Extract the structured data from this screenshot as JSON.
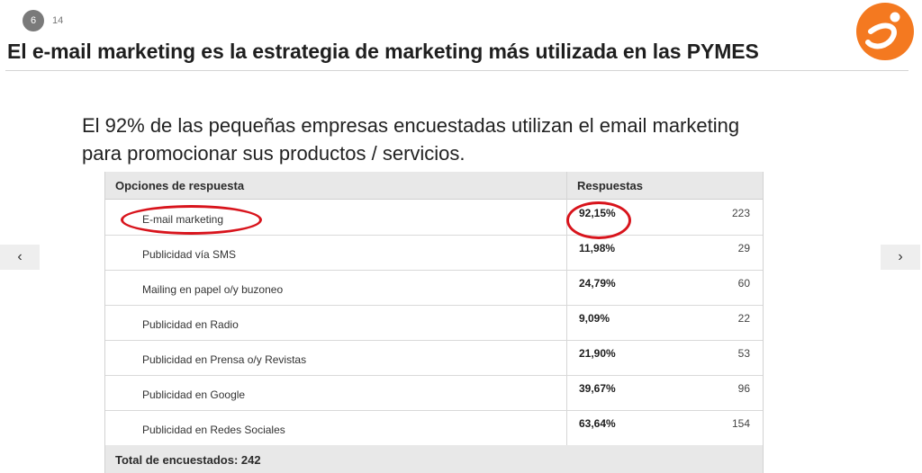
{
  "slide": {
    "current": "6",
    "total": "14"
  },
  "title": "El e-mail marketing es la estrategia de marketing más utilizada en las PYMES",
  "lead": {
    "line1": "El 92% de las pequeñas empresas encuestadas utilizan el email marketing",
    "line2": "para promocionar sus productos / servicios."
  },
  "nav": {
    "prev": "‹",
    "next": "›"
  },
  "survey": {
    "header_options": "Opciones de respuesta",
    "header_responses": "Respuestas",
    "rows": [
      {
        "option": "E-mail marketing",
        "percent": "92,15%",
        "count": "223"
      },
      {
        "option": "Publicidad vía SMS",
        "percent": "11,98%",
        "count": "29"
      },
      {
        "option": "Mailing en papel o/y buzoneo",
        "percent": "24,79%",
        "count": "60"
      },
      {
        "option": "Publicidad en Radio",
        "percent": "9,09%",
        "count": "22"
      },
      {
        "option": "Publicidad en Prensa o/y Revistas",
        "percent": "21,90%",
        "count": "53"
      },
      {
        "option": "Publicidad en Google",
        "percent": "39,67%",
        "count": "96"
      },
      {
        "option": "Publicidad en Redes Sociales",
        "percent": "63,64%",
        "count": "154"
      }
    ],
    "total": "Total de encuestados: 242"
  },
  "colors": {
    "accent_orange": "#f47920",
    "highlight_red": "#d8141c",
    "header_gray": "#e8e8e8"
  },
  "icons": {
    "logo": "orange-brand-logo-icon",
    "prev": "chevron-left-icon",
    "next": "chevron-right-icon"
  }
}
